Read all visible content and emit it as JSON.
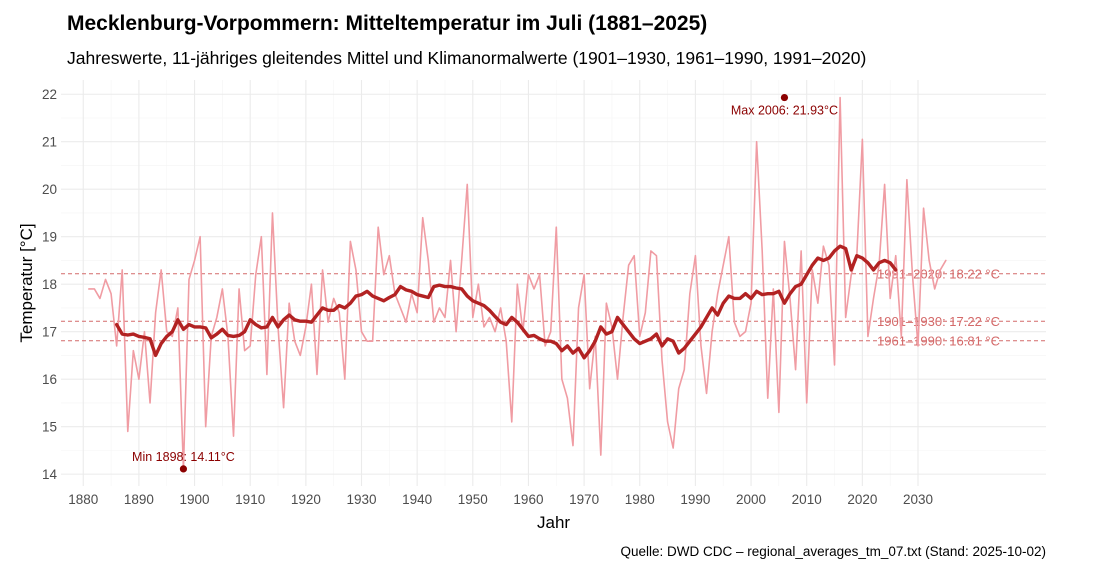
{
  "chart_data": {
    "type": "line",
    "title": "Mecklenburg-Vorpommern: Mitteltemperatur im Juli (1881–2025)",
    "subtitle": "Jahreswerte, 11-jähriges gleitendes Mittel und Klimanormalwerte (1901–1930, 1961–1990, 1991–2020)",
    "caption": "Quelle: DWD CDC – regional_averages_tm_07.txt (Stand: 2025-10-02)",
    "xlabel": "Jahr",
    "ylabel": "Temperatur [°C]",
    "xlim": [
      1876,
      2053
    ],
    "ylim": [
      13.75,
      22.3
    ],
    "x_ticks": [
      1880,
      1890,
      1900,
      1910,
      1920,
      1930,
      1940,
      1950,
      1960,
      1970,
      1980,
      1990,
      2000,
      2010,
      2020,
      2030
    ],
    "y_ticks": [
      14,
      15,
      16,
      17,
      18,
      19,
      20,
      21,
      22
    ],
    "grid": true,
    "colors": {
      "annual": "#f09ca3",
      "moving_mean": "#b22222",
      "reference": "#d46a6a",
      "annotation": "#8b0000",
      "grid": "#ebebeb",
      "tick_text": "#4d4d4d"
    },
    "series": [
      {
        "name": "Jahreswerte",
        "start_year": 1881,
        "values": [
          17.9,
          17.9,
          17.7,
          18.1,
          17.8,
          16.7,
          18.3,
          14.9,
          16.6,
          16.0,
          17.0,
          15.5,
          17.4,
          18.3,
          17.0,
          16.9,
          17.5,
          14.11,
          18.1,
          18.5,
          19.0,
          15.0,
          16.9,
          17.3,
          17.9,
          16.9,
          14.8,
          17.9,
          16.6,
          16.7,
          18.2,
          19.0,
          16.1,
          19.5,
          17.1,
          15.4,
          17.6,
          16.8,
          16.5,
          17.1,
          18.0,
          16.1,
          18.3,
          17.2,
          17.7,
          17.4,
          16.0,
          18.9,
          18.3,
          17.0,
          16.8,
          16.8,
          19.2,
          18.2,
          18.6,
          17.8,
          17.5,
          17.2,
          17.8,
          17.4,
          19.4,
          18.5,
          17.2,
          17.5,
          17.3,
          18.5,
          17.0,
          18.5,
          20.1,
          17.3,
          18.0,
          17.1,
          17.3,
          17.0,
          17.5,
          16.8,
          15.1,
          18.0,
          17.0,
          18.2,
          17.9,
          18.2,
          16.7,
          17.0,
          19.2,
          16.0,
          15.6,
          14.6,
          17.5,
          18.2,
          15.8,
          16.9,
          14.4,
          17.6,
          17.1,
          16.0,
          17.3,
          18.4,
          18.6,
          16.9,
          17.4,
          18.7,
          18.6,
          16.4,
          15.1,
          14.55,
          15.8,
          16.2,
          17.8,
          18.6,
          16.7,
          15.7,
          17.0,
          17.8,
          18.4,
          19.0,
          17.2,
          16.9,
          17.0,
          17.6,
          21.0,
          18.7,
          15.6,
          17.9,
          15.3,
          18.9,
          17.7,
          16.2,
          18.7,
          15.5,
          18.3,
          17.6,
          18.8,
          18.4,
          16.3,
          21.93,
          17.3,
          18.2,
          18.6,
          21.05,
          16.9,
          17.7,
          18.4,
          20.1,
          17.7,
          18.6,
          16.9,
          20.2,
          18.2,
          16.7,
          19.6,
          18.5,
          17.9,
          18.3,
          18.5
        ]
      },
      {
        "name": "11-jähriges gleitendes Mittel",
        "start_year": 1886,
        "values": [
          17.15,
          16.95,
          16.93,
          16.95,
          16.9,
          16.88,
          16.85,
          16.5,
          16.75,
          16.9,
          17.0,
          17.25,
          17.05,
          17.15,
          17.1,
          17.1,
          17.08,
          16.87,
          16.95,
          17.05,
          16.92,
          16.9,
          16.92,
          17.0,
          17.25,
          17.15,
          17.08,
          17.1,
          17.3,
          17.1,
          17.25,
          17.35,
          17.25,
          17.22,
          17.22,
          17.2,
          17.35,
          17.5,
          17.45,
          17.45,
          17.55,
          17.5,
          17.6,
          17.75,
          17.78,
          17.85,
          17.75,
          17.7,
          17.65,
          17.72,
          17.78,
          17.95,
          17.88,
          17.85,
          17.78,
          17.75,
          17.72,
          17.95,
          17.98,
          17.95,
          17.95,
          17.92,
          17.9,
          17.75,
          17.65,
          17.6,
          17.55,
          17.45,
          17.32,
          17.2,
          17.15,
          17.3,
          17.2,
          17.05,
          16.9,
          16.92,
          16.85,
          16.8,
          16.8,
          16.75,
          16.6,
          16.7,
          16.55,
          16.65,
          16.45,
          16.6,
          16.8,
          17.1,
          16.95,
          17.0,
          17.3,
          17.15,
          17.0,
          16.85,
          16.75,
          16.8,
          16.85,
          16.95,
          16.7,
          16.85,
          16.8,
          16.55,
          16.65,
          16.8,
          16.95,
          17.1,
          17.3,
          17.5,
          17.35,
          17.6,
          17.75,
          17.7,
          17.7,
          17.8,
          17.7,
          17.85,
          17.78,
          17.8,
          17.8,
          17.85,
          17.6,
          17.8,
          17.95,
          18.0,
          18.2,
          18.4,
          18.55,
          18.5,
          18.55,
          18.7,
          18.8,
          18.75,
          18.3,
          18.6,
          18.55,
          18.45,
          18.3,
          18.45,
          18.5,
          18.45,
          18.3
        ]
      }
    ],
    "reference_lines": [
      {
        "period": "1991–2020",
        "value": 18.22,
        "label": "1991–2020: 18.22 °C"
      },
      {
        "period": "1901–1930",
        "value": 17.22,
        "label": "1901–1930: 17.22 °C"
      },
      {
        "period": "1961–1990",
        "value": 16.81,
        "label": "1961–1990: 16.81 °C"
      }
    ],
    "annotations": [
      {
        "type": "max",
        "year": 2006,
        "value": 21.93,
        "label": "Max 2006: 21.93°C"
      },
      {
        "type": "min",
        "year": 1898,
        "value": 14.11,
        "label": "Min 1898: 14.11°C"
      }
    ]
  }
}
